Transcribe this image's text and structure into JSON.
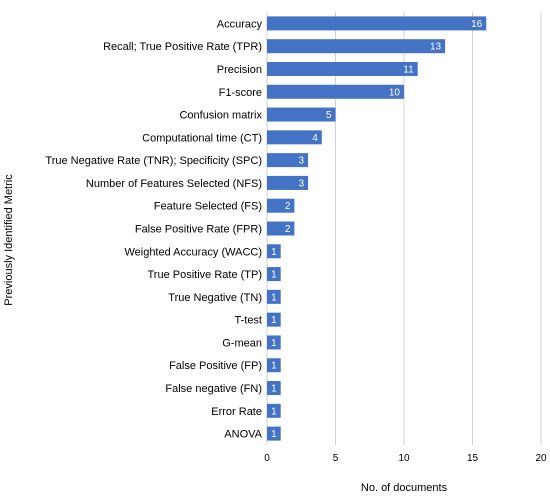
{
  "chart_data": {
    "type": "bar",
    "orientation": "horizontal",
    "categories": [
      "Accuracy",
      "Recall; True Positive Rate (TPR)",
      "Precision",
      "F1-score",
      "Confusion matrix",
      "Computational time (CT)",
      "True Negative Rate (TNR); Specificity (SPC)",
      "Number of Features Selected (NFS)",
      "Feature Selected (FS)",
      "False Positive Rate (FPR)",
      "Weighted Accuracy (WACC)",
      "True Positive Rate (TP)",
      "True Negative (TN)",
      "T-test",
      "G-mean",
      "False Positive (FP)",
      "False negative (FN)",
      "Error Rate",
      "ANOVA"
    ],
    "values": [
      16,
      13,
      11,
      10,
      5,
      4,
      3,
      3,
      2,
      2,
      1,
      1,
      1,
      1,
      1,
      1,
      1,
      1,
      1
    ],
    "xlim": [
      0,
      20
    ],
    "xticks": [
      0,
      5,
      10,
      15,
      20
    ],
    "xlabel": "No. of documents",
    "ylabel": "Previously Identified Metric",
    "title": "",
    "grid": "vertical",
    "data_labels": true,
    "bar_color": "#4472C4",
    "grid_color": "#d0d0d0"
  }
}
